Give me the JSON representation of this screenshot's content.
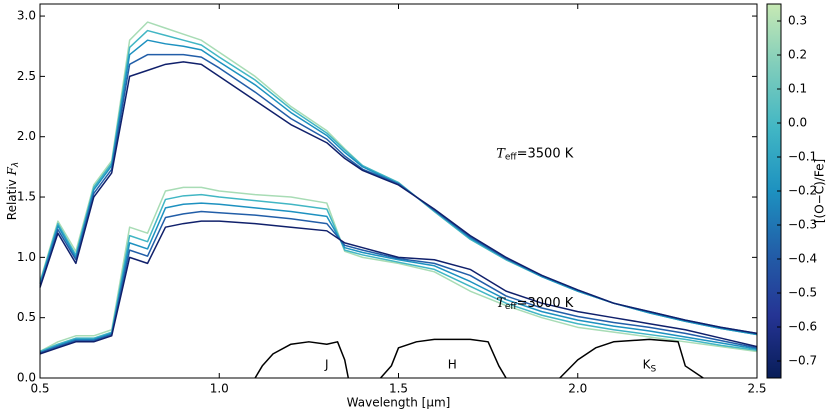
{
  "chart_data": {
    "type": "line",
    "xlabel": "Wavelength [μm]",
    "ylabel": "Relativ ",
    "ylabel_symbol": "F",
    "ylabel_sub": "λ",
    "xlim": [
      0.5,
      2.5
    ],
    "ylim": [
      0,
      3.1
    ],
    "xticks": [
      0.5,
      {
        "value": 1,
        "label": "1.0"
      },
      1.5,
      {
        "value": 2,
        "label": "2.0"
      },
      2.5
    ],
    "yticks": [
      {
        "value": 0,
        "label": "0.0"
      },
      0.5,
      {
        "value": 1,
        "label": "1.0"
      },
      1.5,
      {
        "value": 2,
        "label": "2.0"
      },
      2.5,
      {
        "value": 3,
        "label": "3.0"
      }
    ],
    "annotations": [
      {
        "symbol": "T",
        "sub": "eff",
        "text": "=3500 K"
      },
      {
        "symbol": "T",
        "sub": "eff",
        "text": "=3000 K"
      }
    ],
    "x": [
      0.5,
      0.55,
      0.6,
      0.65,
      0.7,
      0.75,
      0.8,
      0.85,
      0.9,
      0.95,
      1.0,
      1.1,
      1.2,
      1.3,
      1.35,
      1.4,
      1.5,
      1.6,
      1.7,
      1.8,
      1.9,
      2.0,
      2.1,
      2.2,
      2.3,
      2.4,
      2.5
    ],
    "series": [
      {
        "color": "#a8dcb5",
        "values": [
          0.8,
          1.3,
          1.05,
          1.6,
          1.8,
          2.8,
          2.95,
          2.9,
          2.85,
          2.8,
          2.7,
          2.5,
          2.25,
          2.05,
          1.9,
          1.76,
          1.62,
          1.38,
          1.15,
          0.98,
          0.84,
          0.72,
          0.62,
          0.54,
          0.47,
          0.41,
          0.36
        ]
      },
      {
        "color": "#41b6c4",
        "values": [
          0.79,
          1.28,
          1.02,
          1.58,
          1.78,
          2.74,
          2.88,
          2.84,
          2.8,
          2.76,
          2.66,
          2.47,
          2.23,
          2.03,
          1.89,
          1.76,
          1.62,
          1.38,
          1.15,
          0.98,
          0.84,
          0.72,
          0.62,
          0.54,
          0.47,
          0.41,
          0.36
        ]
      },
      {
        "color": "#1d91c0",
        "values": [
          0.78,
          1.26,
          1.0,
          1.56,
          1.76,
          2.68,
          2.8,
          2.77,
          2.75,
          2.72,
          2.62,
          2.43,
          2.2,
          2.01,
          1.87,
          1.75,
          1.61,
          1.39,
          1.16,
          0.99,
          0.84,
          0.72,
          0.62,
          0.54,
          0.47,
          0.41,
          0.36
        ]
      },
      {
        "color": "#225ea8",
        "values": [
          0.76,
          1.23,
          0.98,
          1.53,
          1.73,
          2.6,
          2.68,
          2.68,
          2.68,
          2.66,
          2.57,
          2.37,
          2.15,
          1.98,
          1.84,
          1.73,
          1.61,
          1.39,
          1.17,
          0.99,
          0.85,
          0.73,
          0.62,
          0.55,
          0.48,
          0.42,
          0.37
        ]
      },
      {
        "color": "#10206b",
        "values": [
          0.75,
          1.2,
          0.95,
          1.5,
          1.7,
          2.5,
          2.55,
          2.6,
          2.62,
          2.6,
          2.5,
          2.3,
          2.1,
          1.95,
          1.82,
          1.72,
          1.6,
          1.4,
          1.18,
          1.0,
          0.85,
          0.73,
          0.62,
          0.55,
          0.48,
          0.42,
          0.37
        ]
      },
      {
        "color": "#a8dcb5",
        "values": [
          0.22,
          0.3,
          0.35,
          0.35,
          0.4,
          1.25,
          1.2,
          1.55,
          1.58,
          1.58,
          1.55,
          1.52,
          1.5,
          1.45,
          1.05,
          1.0,
          0.95,
          0.88,
          0.72,
          0.6,
          0.5,
          0.42,
          0.38,
          0.34,
          0.3,
          0.26,
          0.22
        ]
      },
      {
        "color": "#41b6c4",
        "values": [
          0.22,
          0.28,
          0.33,
          0.33,
          0.38,
          1.18,
          1.13,
          1.48,
          1.51,
          1.52,
          1.5,
          1.47,
          1.44,
          1.4,
          1.06,
          1.02,
          0.96,
          0.9,
          0.76,
          0.62,
          0.52,
          0.45,
          0.4,
          0.36,
          0.32,
          0.27,
          0.23
        ]
      },
      {
        "color": "#1d91c0",
        "values": [
          0.21,
          0.27,
          0.32,
          0.32,
          0.37,
          1.12,
          1.07,
          1.41,
          1.44,
          1.45,
          1.44,
          1.41,
          1.38,
          1.34,
          1.08,
          1.04,
          0.98,
          0.93,
          0.8,
          0.65,
          0.55,
          0.48,
          0.43,
          0.39,
          0.34,
          0.29,
          0.24
        ]
      },
      {
        "color": "#225ea8",
        "values": [
          0.21,
          0.26,
          0.31,
          0.31,
          0.36,
          1.06,
          1.01,
          1.33,
          1.36,
          1.38,
          1.37,
          1.35,
          1.32,
          1.28,
          1.1,
          1.06,
          0.99,
          0.95,
          0.85,
          0.68,
          0.58,
          0.51,
          0.46,
          0.42,
          0.37,
          0.31,
          0.25
        ]
      },
      {
        "color": "#10206b",
        "values": [
          0.2,
          0.25,
          0.3,
          0.3,
          0.35,
          1.0,
          0.95,
          1.25,
          1.28,
          1.3,
          1.3,
          1.28,
          1.25,
          1.22,
          1.12,
          1.08,
          1.0,
          0.98,
          0.9,
          0.72,
          0.62,
          0.55,
          0.5,
          0.45,
          0.4,
          0.33,
          0.26
        ]
      }
    ],
    "filters": [
      {
        "name": "J",
        "color": "#000000",
        "x": [
          1.1,
          1.12,
          1.15,
          1.2,
          1.25,
          1.3,
          1.33,
          1.35,
          1.36
        ],
        "values": [
          0,
          0.1,
          0.2,
          0.28,
          0.3,
          0.28,
          0.3,
          0.15,
          0
        ]
      },
      {
        "name": "H",
        "color": "#000000",
        "x": [
          1.45,
          1.48,
          1.5,
          1.55,
          1.6,
          1.7,
          1.75,
          1.78,
          1.8
        ],
        "values": [
          0,
          0.1,
          0.25,
          0.3,
          0.32,
          0.32,
          0.3,
          0.1,
          0
        ]
      },
      {
        "name": "K",
        "subscript": "S",
        "color": "#000000",
        "x": [
          1.95,
          2.0,
          2.05,
          2.1,
          2.2,
          2.28,
          2.3,
          2.35
        ],
        "values": [
          0,
          0.15,
          0.25,
          0.3,
          0.32,
          0.3,
          0.1,
          0
        ]
      }
    ],
    "colorbar": {
      "label": "[(O−C)/Fe]",
      "lim": [
        -0.75,
        0.35
      ],
      "colors": [
        "#081d58",
        "#253494",
        "#225ea8",
        "#1d91c0",
        "#41b6c4",
        "#7fcdbb",
        "#c7e9b4"
      ],
      "ticks": [
        {
          "value": 0.3,
          "label": "0.3"
        },
        {
          "value": 0.2,
          "label": "0.2"
        },
        {
          "value": 0.1,
          "label": "0.1"
        },
        {
          "value": 0,
          "label": "0.0"
        },
        {
          "value": -0.1,
          "label": "−0.1"
        },
        {
          "value": -0.2,
          "label": "−0.2"
        },
        {
          "value": -0.3,
          "label": "−0.3"
        },
        {
          "value": -0.4,
          "label": "−0.4"
        },
        {
          "value": -0.5,
          "label": "−0.5"
        },
        {
          "value": -0.6,
          "label": "−0.6"
        },
        {
          "value": -0.7,
          "label": "−0.7"
        }
      ]
    }
  }
}
